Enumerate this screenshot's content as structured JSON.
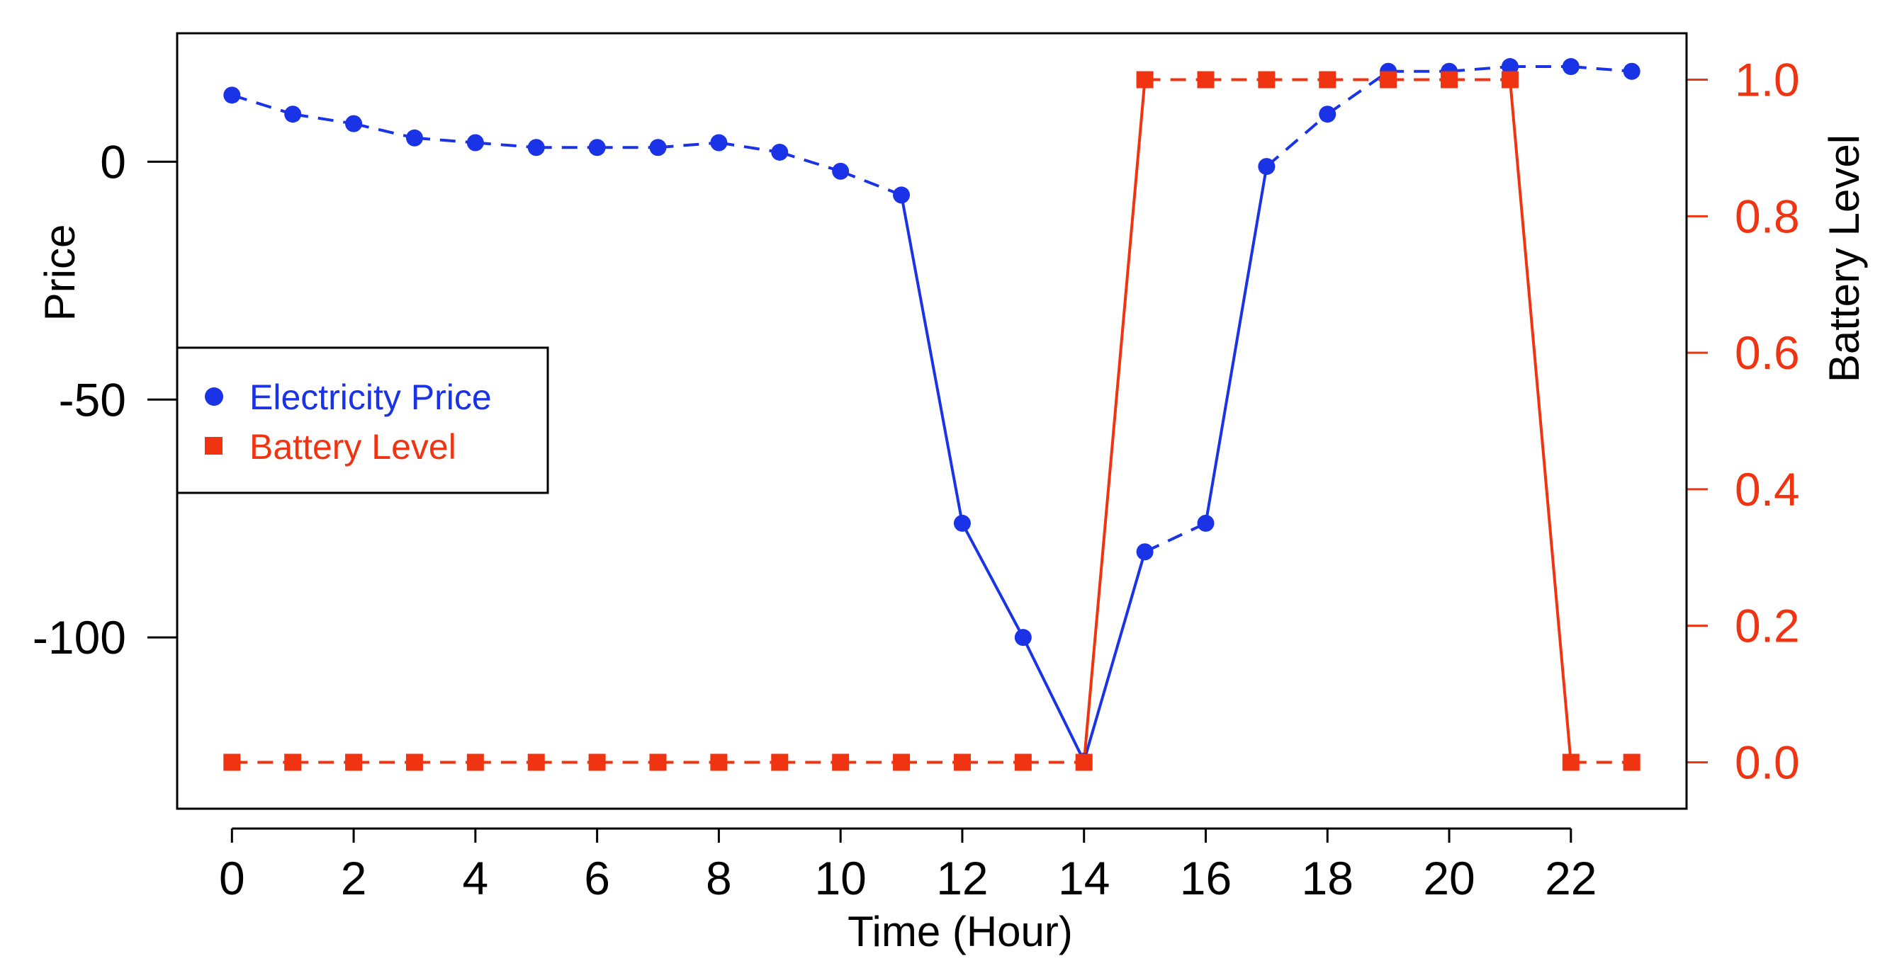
{
  "chart_data": {
    "type": "line",
    "xlabel": "Time (Hour)",
    "ylabel_left": "Price",
    "ylabel_right": "Battery Level",
    "x": [
      0,
      1,
      2,
      3,
      4,
      5,
      6,
      7,
      8,
      9,
      10,
      11,
      12,
      13,
      14,
      15,
      16,
      17,
      18,
      19,
      20,
      21,
      22,
      23
    ],
    "xticks": [
      0,
      2,
      4,
      6,
      8,
      10,
      12,
      14,
      16,
      18,
      20,
      22
    ],
    "xlim": [
      -0.9,
      23.9
    ],
    "y_left_lim": [
      -136,
      27
    ],
    "y_left_ticks": [
      0,
      -50,
      -100
    ],
    "y_left_tick_labels": [
      "0",
      "-50",
      "-100"
    ],
    "y_right_lim": [
      -0.068,
      1.068
    ],
    "y_right_ticks": [
      0.0,
      0.2,
      0.4,
      0.6,
      0.8,
      1.0
    ],
    "y_right_tick_labels": [
      "0.0",
      "0.2",
      "0.4",
      "0.6",
      "0.8",
      "1.0"
    ],
    "series": [
      {
        "name": "Electricity Price",
        "axis": "left",
        "color": "#1a33e6",
        "marker": "circle",
        "values": [
          14,
          10,
          8,
          5,
          4,
          3,
          3,
          3,
          4,
          2,
          -2,
          -7,
          -76,
          -100,
          -126,
          -82,
          -76,
          -1,
          10,
          19,
          19,
          20,
          20,
          19
        ]
      },
      {
        "name": "Battery Level",
        "axis": "right",
        "color": "#f03311",
        "marker": "square",
        "values": [
          0,
          0,
          0,
          0,
          0,
          0,
          0,
          0,
          0,
          0,
          0,
          0,
          0,
          0,
          0,
          1,
          1,
          1,
          1,
          1,
          1,
          1,
          0,
          0
        ]
      }
    ],
    "legend": {
      "position": "center-left",
      "items": [
        "Electricity Price",
        "Battery Level"
      ]
    }
  }
}
